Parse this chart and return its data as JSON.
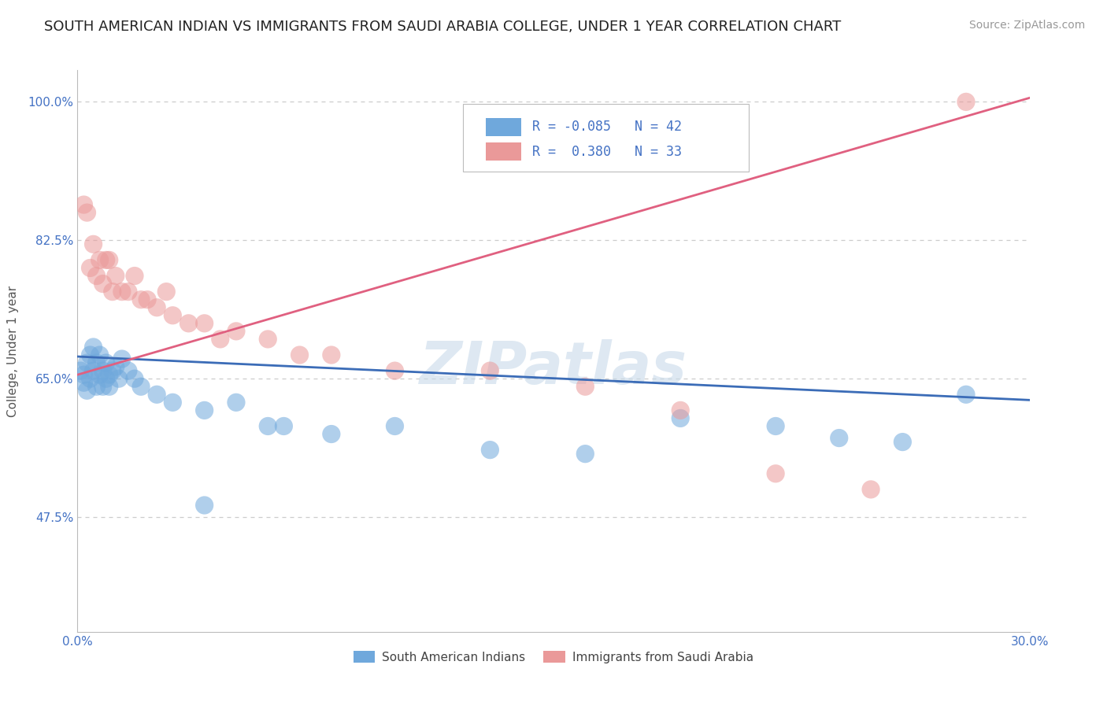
{
  "title": "SOUTH AMERICAN INDIAN VS IMMIGRANTS FROM SAUDI ARABIA COLLEGE, UNDER 1 YEAR CORRELATION CHART",
  "source": "Source: ZipAtlas.com",
  "ylabel": "College, Under 1 year",
  "xlim": [
    0.0,
    0.3
  ],
  "ylim": [
    0.33,
    1.04
  ],
  "xticks": [
    0.0,
    0.3
  ],
  "xticklabels": [
    "0.0%",
    "30.0%"
  ],
  "yticks": [
    0.475,
    0.65,
    0.825,
    1.0
  ],
  "yticklabels": [
    "47.5%",
    "65.0%",
    "82.5%",
    "100.0%"
  ],
  "blue_color": "#6fa8dc",
  "pink_color": "#ea9999",
  "blue_line_color": "#3b6cb7",
  "pink_line_color": "#e06080",
  "legend_r_blue": "-0.085",
  "legend_n_blue": "42",
  "legend_r_pink": "0.380",
  "legend_n_pink": "33",
  "legend_label_blue": "South American Indians",
  "legend_label_pink": "Immigrants from Saudi Arabia",
  "watermark": "ZIPatlas",
  "blue_scatter_x": [
    0.001,
    0.002,
    0.002,
    0.003,
    0.003,
    0.004,
    0.004,
    0.005,
    0.005,
    0.006,
    0.006,
    0.007,
    0.007,
    0.008,
    0.008,
    0.009,
    0.009,
    0.01,
    0.01,
    0.011,
    0.012,
    0.013,
    0.014,
    0.016,
    0.018,
    0.02,
    0.025,
    0.03,
    0.04,
    0.05,
    0.065,
    0.08,
    0.1,
    0.13,
    0.16,
    0.19,
    0.22,
    0.24,
    0.26,
    0.28,
    0.04,
    0.06
  ],
  "blue_scatter_y": [
    0.66,
    0.655,
    0.645,
    0.67,
    0.635,
    0.68,
    0.65,
    0.66,
    0.69,
    0.67,
    0.64,
    0.68,
    0.655,
    0.66,
    0.64,
    0.67,
    0.65,
    0.655,
    0.64,
    0.66,
    0.665,
    0.65,
    0.675,
    0.66,
    0.65,
    0.64,
    0.63,
    0.62,
    0.61,
    0.62,
    0.59,
    0.58,
    0.59,
    0.56,
    0.555,
    0.6,
    0.59,
    0.575,
    0.57,
    0.63,
    0.49,
    0.59
  ],
  "pink_scatter_x": [
    0.002,
    0.003,
    0.004,
    0.005,
    0.006,
    0.007,
    0.008,
    0.009,
    0.01,
    0.011,
    0.012,
    0.014,
    0.016,
    0.018,
    0.02,
    0.022,
    0.025,
    0.028,
    0.03,
    0.035,
    0.04,
    0.045,
    0.05,
    0.06,
    0.07,
    0.08,
    0.1,
    0.13,
    0.16,
    0.19,
    0.22,
    0.25,
    0.28
  ],
  "pink_scatter_y": [
    0.87,
    0.86,
    0.79,
    0.82,
    0.78,
    0.8,
    0.77,
    0.8,
    0.8,
    0.76,
    0.78,
    0.76,
    0.76,
    0.78,
    0.75,
    0.75,
    0.74,
    0.76,
    0.73,
    0.72,
    0.72,
    0.7,
    0.71,
    0.7,
    0.68,
    0.68,
    0.66,
    0.66,
    0.64,
    0.61,
    0.53,
    0.51,
    1.0
  ],
  "blue_line_x0": 0.0,
  "blue_line_x1": 0.3,
  "blue_line_y0": 0.678,
  "blue_line_y1": 0.623,
  "pink_line_x0": 0.0,
  "pink_line_x1": 0.3,
  "pink_line_y0": 0.655,
  "pink_line_y1": 1.005,
  "grid_color": "#cccccc",
  "background_color": "#ffffff",
  "title_fontsize": 13,
  "axis_label_fontsize": 11,
  "tick_fontsize": 11,
  "source_fontsize": 10
}
